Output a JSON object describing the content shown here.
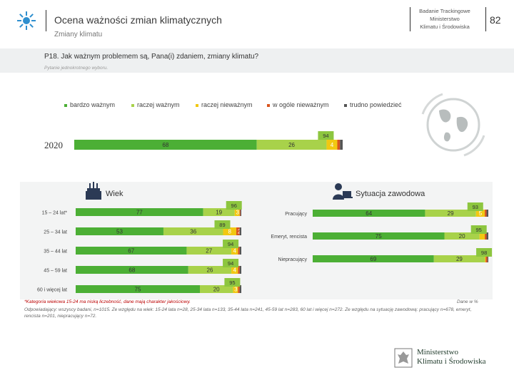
{
  "header": {
    "title": "Ocena ważności zmian klimatycznych",
    "subtitle": "Zmiany klimatu",
    "right_line1": "Badanie Trackingowe",
    "right_line2": "Ministerstwo",
    "right_line3": "Klimatu i Środowiska",
    "page_number": "82"
  },
  "question": {
    "text": "P18. Jak ważnym problemem są, Pana(i) zdaniem, zmiany klimatu?",
    "note": "Pytanie jednokrotnego wyboru."
  },
  "colors": {
    "bardzo": "#4caf35",
    "raczej_wazny": "#a8d24a",
    "raczej_niewazny": "#f2c811",
    "wogole": "#d9541e",
    "trudno": "#555555",
    "summary_box": "#8dc63f"
  },
  "chart_data": {
    "type": "bar",
    "orientation": "horizontal-stacked",
    "title": "P18. Jak ważnym problemem są, Pana(i) zdaniem, zmiany klimatu?",
    "legend": [
      "bardzo ważnym",
      "raczej ważnym",
      "raczej nieważnym",
      "w ogóle nieważnym",
      "trudno powiedzieć"
    ],
    "total": {
      "label": "2020",
      "values": [
        68,
        26,
        4,
        1,
        1
      ],
      "labels": [
        "68",
        "26",
        "4",
        "",
        ""
      ],
      "summary": "94"
    },
    "wiek": {
      "title": "Wiek",
      "rows": [
        {
          "label": "15 – 24 lat*",
          "values": [
            77,
            19,
            3,
            0.5,
            0.5
          ],
          "labels": [
            "77",
            "19",
            "3",
            "",
            ""
          ],
          "summary": "96"
        },
        {
          "label": "25 – 34 lat",
          "values": [
            53,
            36,
            8,
            2,
            1
          ],
          "labels": [
            "53",
            "36",
            "8",
            "2",
            ""
          ],
          "summary": "89"
        },
        {
          "label": "35 – 44 lat",
          "values": [
            67,
            27,
            4,
            1,
            1
          ],
          "labels": [
            "67",
            "27",
            "4",
            "",
            ""
          ],
          "summary": "94"
        },
        {
          "label": "45 – 59 lat",
          "values": [
            68,
            26,
            4,
            1,
            1
          ],
          "labels": [
            "68",
            "26",
            "4",
            "",
            ""
          ],
          "summary": "94"
        },
        {
          "label": "60 i więcej lat",
          "values": [
            75,
            20,
            3,
            1,
            1
          ],
          "labels": [
            "75",
            "20",
            "3",
            "",
            ""
          ],
          "summary": "95"
        }
      ]
    },
    "sytuacja": {
      "title": "Sytuacja zawodowa",
      "rows": [
        {
          "label": "Pracujący",
          "values": [
            64,
            29,
            5,
            1,
            1
          ],
          "labels": [
            "64",
            "29",
            "5",
            "",
            ""
          ],
          "summary": "93"
        },
        {
          "label": "Emeryt, rencista",
          "values": [
            75,
            20,
            3,
            1,
            1
          ],
          "labels": [
            "75",
            "20",
            "",
            "",
            ""
          ],
          "summary": "95"
        },
        {
          "label": "Niepracujący",
          "values": [
            69,
            29,
            0.5,
            1,
            0.5
          ],
          "labels": [
            "69",
            "29",
            "",
            "",
            ""
          ],
          "summary": "98"
        }
      ]
    }
  },
  "footnotes": {
    "warning": "*Kategoria wiekowa 15-24 ma niską liczebność, dane mają charakter jakościowy.",
    "base": "Odpowiadający: wszyscy badani, n=1015. Ze względu na wiek: 15-24 lata n=28, 25-34 lata n=133, 35-44 lata n=241, 45-59 lat n=283, 60 lat i więcej n=272. Ze względu na sytuację zawodową: pracujący n=678, emeryt, rencista n=201, niepracujący n=72.",
    "unit": "Dane w %"
  },
  "ministry": {
    "line1": "Ministerstwo",
    "line2": "Klimatu i Środowiska"
  }
}
